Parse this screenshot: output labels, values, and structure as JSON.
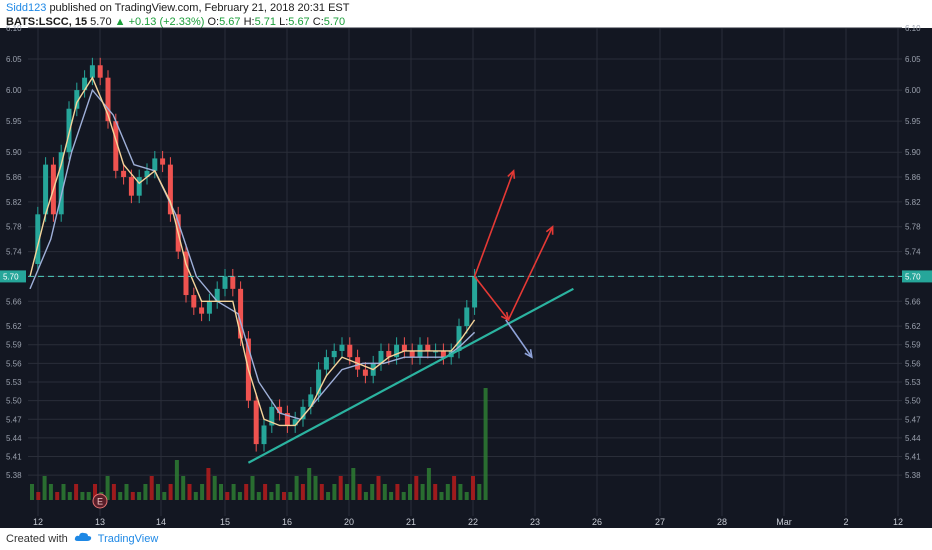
{
  "header": {
    "author": "Sidd123",
    "published_text": "published on TradingView.com, February 21, 2018 20:31 EST",
    "symbol": "BATS:LSCC, 15",
    "last": "5.70",
    "change": "▲ +0.13 (+2.33%)",
    "o_label": "O:",
    "o_val": "5.67",
    "h_label": "H:",
    "h_val": "5.71",
    "l_label": "L:",
    "l_val": "5.67",
    "c_label": "C:",
    "c_val": "5.70"
  },
  "footer": {
    "created_with": "Created with",
    "brand": "TradingView"
  },
  "colors": {
    "background": "#131722",
    "grid": "#2a2e39",
    "up": "#26a69a",
    "down": "#ef5350",
    "ma_fast": "#f5d49a",
    "ma_slow": "#9fb0d9",
    "trendline": "#2bb3a0",
    "arrow_red": "#e53935",
    "arrow_blue": "#8fa3d9",
    "price_line": "#4dd0c0",
    "volume_up": "#2e7d32",
    "volume_down": "#b71c1c"
  },
  "chart_data": {
    "type": "candlestick",
    "y_axis": {
      "ylim": [
        5.34,
        6.1
      ],
      "ticks": [
        "6.10",
        "6.05",
        "6.00",
        "5.95",
        "5.90",
        "5.86",
        "5.82",
        "5.78",
        "5.74",
        "5.70",
        "5.66",
        "5.62",
        "5.59",
        "5.56",
        "5.53",
        "5.50",
        "5.47",
        "5.44",
        "5.41",
        "5.38"
      ]
    },
    "x_axis": {
      "ticks": [
        "12",
        "13",
        "14",
        "15",
        "16",
        "20",
        "21",
        "22",
        "23",
        "26",
        "27",
        "28",
        "Mar",
        "2",
        "12"
      ]
    },
    "current_price_label": "5.70",
    "earnings_marker": "E",
    "close_path": [
      [
        0,
        5.72
      ],
      [
        3,
        5.8
      ],
      [
        6,
        5.88
      ],
      [
        9,
        5.8
      ],
      [
        12,
        5.9
      ],
      [
        15,
        5.97
      ],
      [
        18,
        6.0
      ],
      [
        21,
        6.02
      ],
      [
        24,
        6.04
      ],
      [
        27,
        6.02
      ],
      [
        30,
        5.95
      ],
      [
        33,
        5.87
      ],
      [
        36,
        5.86
      ],
      [
        39,
        5.83
      ],
      [
        42,
        5.86
      ],
      [
        45,
        5.87
      ],
      [
        48,
        5.89
      ],
      [
        51,
        5.88
      ],
      [
        54,
        5.8
      ],
      [
        57,
        5.74
      ],
      [
        60,
        5.67
      ],
      [
        63,
        5.65
      ],
      [
        66,
        5.64
      ],
      [
        69,
        5.66
      ],
      [
        72,
        5.68
      ],
      [
        75,
        5.7
      ],
      [
        78,
        5.68
      ],
      [
        81,
        5.6
      ],
      [
        84,
        5.5
      ],
      [
        87,
        5.43
      ],
      [
        90,
        5.46
      ],
      [
        93,
        5.49
      ],
      [
        96,
        5.48
      ],
      [
        99,
        5.46
      ],
      [
        102,
        5.47
      ],
      [
        105,
        5.49
      ],
      [
        108,
        5.51
      ],
      [
        111,
        5.55
      ],
      [
        114,
        5.57
      ],
      [
        117,
        5.58
      ],
      [
        120,
        5.59
      ],
      [
        123,
        5.57
      ],
      [
        126,
        5.55
      ],
      [
        129,
        5.54
      ],
      [
        132,
        5.56
      ],
      [
        135,
        5.58
      ],
      [
        138,
        5.57
      ],
      [
        141,
        5.59
      ],
      [
        144,
        5.58
      ],
      [
        147,
        5.57
      ],
      [
        150,
        5.59
      ],
      [
        153,
        5.58
      ],
      [
        156,
        5.58
      ],
      [
        159,
        5.57
      ],
      [
        162,
        5.58
      ],
      [
        165,
        5.62
      ],
      [
        168,
        5.65
      ],
      [
        171,
        5.7
      ]
    ],
    "ma_fast_path": [
      [
        0,
        5.7
      ],
      [
        6,
        5.8
      ],
      [
        12,
        5.88
      ],
      [
        18,
        5.98
      ],
      [
        24,
        6.02
      ],
      [
        30,
        5.96
      ],
      [
        36,
        5.88
      ],
      [
        42,
        5.85
      ],
      [
        48,
        5.87
      ],
      [
        54,
        5.82
      ],
      [
        60,
        5.72
      ],
      [
        66,
        5.66
      ],
      [
        72,
        5.66
      ],
      [
        78,
        5.66
      ],
      [
        84,
        5.55
      ],
      [
        90,
        5.47
      ],
      [
        96,
        5.46
      ],
      [
        102,
        5.46
      ],
      [
        108,
        5.49
      ],
      [
        114,
        5.54
      ],
      [
        120,
        5.57
      ],
      [
        126,
        5.56
      ],
      [
        132,
        5.55
      ],
      [
        138,
        5.57
      ],
      [
        144,
        5.58
      ],
      [
        150,
        5.58
      ],
      [
        156,
        5.58
      ],
      [
        162,
        5.58
      ],
      [
        166,
        5.6
      ],
      [
        171,
        5.63
      ]
    ],
    "ma_slow_path": [
      [
        0,
        5.68
      ],
      [
        8,
        5.76
      ],
      [
        16,
        5.9
      ],
      [
        24,
        6.0
      ],
      [
        32,
        5.96
      ],
      [
        40,
        5.88
      ],
      [
        48,
        5.87
      ],
      [
        56,
        5.8
      ],
      [
        64,
        5.7
      ],
      [
        72,
        5.66
      ],
      [
        80,
        5.64
      ],
      [
        88,
        5.53
      ],
      [
        96,
        5.48
      ],
      [
        104,
        5.47
      ],
      [
        112,
        5.51
      ],
      [
        120,
        5.55
      ],
      [
        128,
        5.56
      ],
      [
        136,
        5.56
      ],
      [
        144,
        5.57
      ],
      [
        152,
        5.57
      ],
      [
        160,
        5.57
      ],
      [
        166,
        5.59
      ],
      [
        171,
        5.61
      ]
    ],
    "volume": [
      2,
      1,
      3,
      2,
      1,
      2,
      1,
      2,
      1,
      1,
      2,
      1,
      3,
      2,
      1,
      2,
      1,
      1,
      2,
      3,
      2,
      1,
      2,
      5,
      3,
      2,
      1,
      2,
      4,
      3,
      2,
      1,
      2,
      1,
      2,
      3,
      1,
      2,
      1,
      2,
      1,
      1,
      3,
      2,
      4,
      3,
      2,
      1,
      2,
      3,
      2,
      4,
      2,
      1,
      2,
      3,
      2,
      1,
      2,
      1,
      2,
      3,
      2,
      4,
      2,
      1,
      2,
      3,
      2,
      1,
      3,
      2,
      14
    ],
    "trendline": {
      "start": [
        84,
        5.4
      ],
      "end": [
        209,
        5.68
      ]
    },
    "arrows_red": [
      {
        "from": [
          171,
          5.7
        ],
        "to": [
          186,
          5.87
        ]
      },
      {
        "from": [
          171,
          5.7
        ],
        "to": [
          184,
          5.63
        ]
      },
      {
        "from": [
          184,
          5.63
        ],
        "to": [
          201,
          5.78
        ]
      }
    ],
    "arrow_blue": {
      "from": [
        183,
        5.63
      ],
      "to": [
        193,
        5.57
      ]
    }
  }
}
